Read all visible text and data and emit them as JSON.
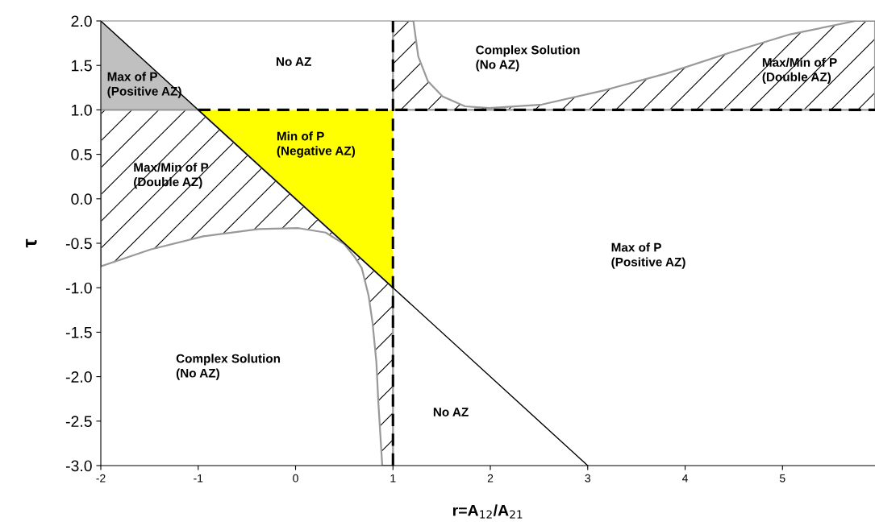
{
  "chart_data": {
    "type": "line",
    "xlabel": "r=A$_{12}$/A$_{21}$",
    "ylabel": "τ",
    "xlim": [
      -2,
      5.95
    ],
    "ylim": [
      -3.0,
      2.0
    ],
    "xticks": [
      -2,
      -1,
      0,
      1,
      2,
      3,
      4,
      5
    ],
    "yticks": [
      {
        "value": -3,
        "label": "-3.0"
      },
      {
        "value": -2.5,
        "label": "-2.5"
      },
      {
        "value": -2,
        "label": "-2.0"
      },
      {
        "value": -1.5,
        "label": "-1.5"
      },
      {
        "value": -1,
        "label": "-1.0"
      },
      {
        "value": -0.5,
        "label": "-0.5"
      },
      {
        "value": 0,
        "label": "0.0"
      },
      {
        "value": 0.5,
        "label": "0.5"
      },
      {
        "value": 1,
        "label": "1.0"
      },
      {
        "value": 1.5,
        "label": "1.5"
      },
      {
        "value": 2,
        "label": "2.0"
      }
    ],
    "grid": false,
    "legend": false,
    "series": [
      {
        "type": "area",
        "color": "#c0c0c0",
        "x": [
          -2,
          -2,
          -1
        ],
        "values": [
          2,
          1,
          1
        ]
      },
      {
        "type": "area",
        "color": "#ffff00",
        "x": [
          -1,
          1,
          1
        ],
        "values": [
          1,
          1,
          -1
        ]
      },
      {
        "type": "area",
        "color": "#000000",
        "x": [
          -2,
          -1,
          1,
          1,
          0.89,
          0.85,
          0.83,
          0.79,
          0.75,
          0.68,
          0.61,
          0.5,
          0.31,
          0.03,
          -0.38,
          -0.94,
          -1.49,
          -2
        ],
        "values": [
          1,
          1,
          -1,
          -3,
          -3,
          -2.29,
          -1.84,
          -1.39,
          -1.09,
          -0.78,
          -0.66,
          -0.51,
          -0.38,
          -0.33,
          -0.34,
          -0.42,
          -0.57,
          -0.76
        ]
      },
      {
        "type": "area",
        "color": "#000000",
        "x": [
          1,
          1.21,
          1.26,
          1.36,
          1.51,
          1.74,
          1.99,
          2.53,
          3.17,
          3.81,
          4.45,
          5.08,
          5.75,
          5.95,
          5.95,
          1
        ],
        "values": [
          2,
          2,
          1.6,
          1.32,
          1.15,
          1.04,
          1.02,
          1.06,
          1.22,
          1.41,
          1.64,
          1.85,
          2.0,
          2.0,
          1,
          1
        ]
      },
      {
        "color": "#000000",
        "x": [
          -2,
          3
        ],
        "values": [
          2,
          -3
        ]
      },
      {
        "color": "#000000",
        "line_style": "dashed",
        "x": [
          -1,
          5.95
        ],
        "values": [
          1,
          1
        ]
      }
    ],
    "ref_lines": [
      {
        "axis": "x",
        "value": 1,
        "color": "#000000",
        "line_style": "dashed"
      }
    ],
    "annotations": [
      "Max of P\n(Positive AZ)",
      "No AZ",
      "Min of P\n(Negative AZ)",
      "Max/Min of P\n(Double AZ)",
      "Complex Solution\n(No AZ)",
      "Max/Min of P\n(Double AZ)",
      "Max of P\n(Positive AZ)",
      "Complex Solution\n(No AZ)",
      "No AZ"
    ]
  }
}
